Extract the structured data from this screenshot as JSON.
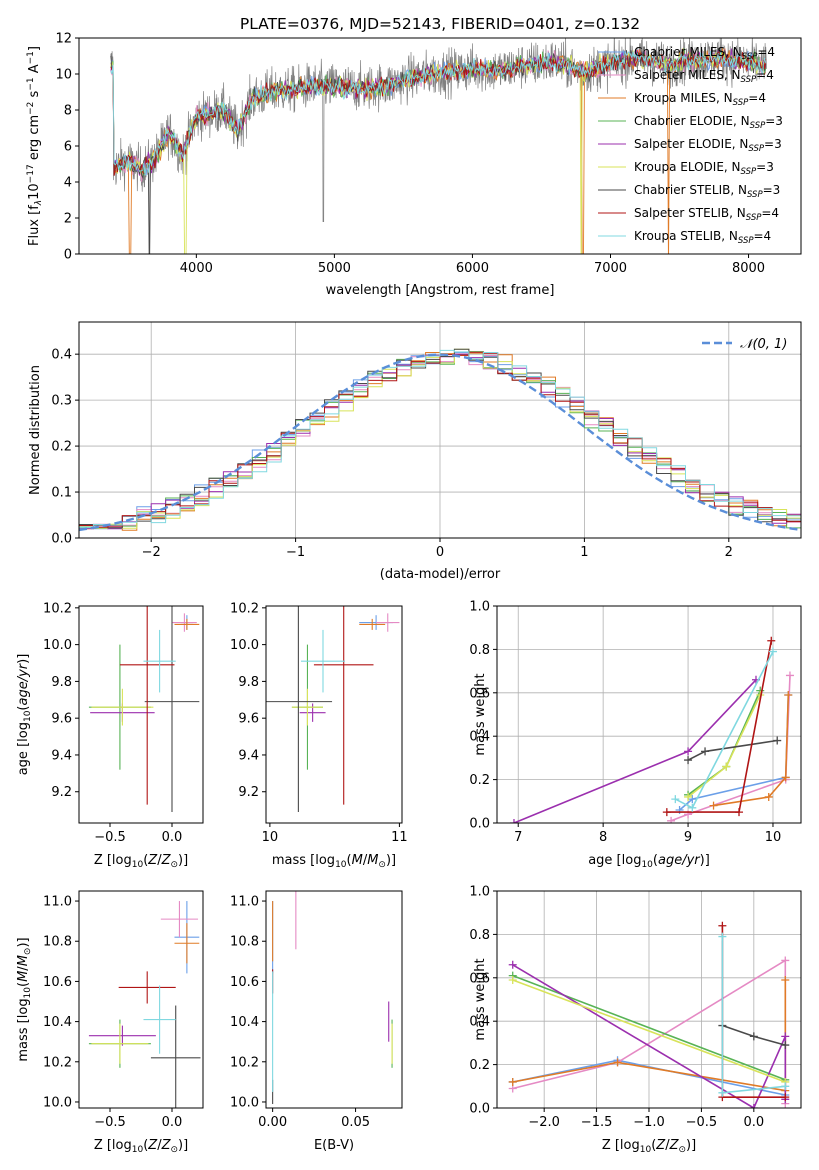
{
  "figure": {
    "title": "PLATE=0376, MJD=52143, FIBERID=0401, z=0.132"
  },
  "colors": {
    "chabrier_miles": "#6b9fe8",
    "salpeter_miles": "#e58ac4",
    "kroupa_miles": "#e07b27",
    "chabrier_elodie": "#58b356",
    "salpeter_elodie": "#9b2fae",
    "kroupa_elodie": "#d8e35a",
    "chabrier_stelib": "#4a4a4a",
    "salpeter_stelib": "#b01515",
    "kroupa_stelib": "#80d8e0",
    "data": "#7f7f7f",
    "gauss": "#5a8ed8"
  },
  "chart_data": [
    {
      "id": "spectrum",
      "type": "line",
      "xlabel": "wavelength [Angstrom, rest frame]",
      "ylabel": "Flux [f",
      "xlim": [
        3150,
        8380
      ],
      "ylim": [
        0,
        12
      ],
      "xticks": [
        4000,
        5000,
        6000,
        7000,
        8000
      ],
      "yticks": [
        0,
        2,
        4,
        6,
        8,
        10,
        12
      ],
      "legend": {
        "placement": "right",
        "entries": [
          {
            "name": "Chabrier MILES, N",
            "sub": "SSP",
            "suffix": "=4",
            "color": "chabrier_miles"
          },
          {
            "name": "Salpeter MILES, N",
            "sub": "SSP",
            "suffix": "=4",
            "color": "salpeter_miles"
          },
          {
            "name": "Kroupa MILES, N",
            "sub": "SSP",
            "suffix": "=4",
            "color": "kroupa_miles"
          },
          {
            "name": "Chabrier ELODIE, N",
            "sub": "SSP",
            "suffix": "=3",
            "color": "chabrier_elodie"
          },
          {
            "name": "Salpeter ELODIE, N",
            "sub": "SSP",
            "suffix": "=3",
            "color": "salpeter_elodie"
          },
          {
            "name": "Kroupa ELODIE, N",
            "sub": "SSP",
            "suffix": "=3",
            "color": "kroupa_elodie"
          },
          {
            "name": "Chabrier STELIB, N",
            "sub": "SSP",
            "suffix": "=3",
            "color": "chabrier_stelib"
          },
          {
            "name": "Salpeter STELIB, N",
            "sub": "SSP",
            "suffix": "=4",
            "color": "salpeter_stelib"
          },
          {
            "name": "Kroupa STELIB, N",
            "sub": "SSP",
            "suffix": "=4",
            "color": "kroupa_stelib"
          }
        ]
      },
      "continuum": [
        [
          3400,
          4.8
        ],
        [
          3500,
          5.2
        ],
        [
          3600,
          4.7
        ],
        [
          3700,
          5.3
        ],
        [
          3800,
          6.8
        ],
        [
          3900,
          5.5
        ],
        [
          4000,
          7.6
        ],
        [
          4100,
          7.8
        ],
        [
          4200,
          8.0
        ],
        [
          4300,
          6.8
        ],
        [
          4400,
          8.6
        ],
        [
          4500,
          8.9
        ],
        [
          4600,
          9.1
        ],
        [
          4700,
          9.1
        ],
        [
          4800,
          9.3
        ],
        [
          5000,
          9.3
        ],
        [
          5200,
          9.2
        ],
        [
          5400,
          9.4
        ],
        [
          5600,
          9.9
        ],
        [
          5800,
          10.1
        ],
        [
          6000,
          10.3
        ],
        [
          6200,
          10.2
        ],
        [
          6400,
          10.5
        ],
        [
          6600,
          10.7
        ],
        [
          6800,
          10.1
        ],
        [
          7000,
          10.6
        ],
        [
          7200,
          10.9
        ],
        [
          7400,
          10.5
        ],
        [
          7600,
          10.8
        ],
        [
          7800,
          10.9
        ],
        [
          8000,
          10.6
        ],
        [
          8120,
          10.5
        ]
      ],
      "model_drops": [
        {
          "series": "kroupa_miles",
          "x": 3520
        },
        {
          "series": "chabrier_stelib",
          "x": 3660
        },
        {
          "series": "kroupa_elodie",
          "x": 3920
        },
        {
          "series": "kroupa_elodie",
          "x": 6790
        },
        {
          "series": "kroupa_miles",
          "x": 6800
        },
        {
          "series": "kroupa_miles",
          "x": 7420
        }
      ]
    },
    {
      "id": "residuals",
      "type": "line",
      "xlabel": "(data-model)/error",
      "ylabel": "Normed distribution",
      "xlim": [
        -2.5,
        2.5
      ],
      "ylim": [
        0,
        0.47
      ],
      "xticks": [
        -2,
        -1,
        0,
        1,
        2
      ],
      "yticks": [
        0.0,
        0.1,
        0.2,
        0.3,
        0.4
      ],
      "grid": true,
      "legend": {
        "placement": "top-right",
        "entries": [
          {
            "name": "𝒩(0, 1)",
            "color": "gauss",
            "style": "dashed"
          }
        ]
      },
      "bin_width": 0.1,
      "series_colors": [
        "chabrier_miles",
        "salpeter_miles",
        "kroupa_miles",
        "chabrier_elodie",
        "salpeter_elodie",
        "kroupa_elodie",
        "chabrier_stelib",
        "salpeter_stelib",
        "kroupa_stelib"
      ]
    },
    {
      "id": "z_age",
      "type": "scatter",
      "xlabel": "Z [log",
      "ylabel": "age  [log",
      "xlim": [
        -0.75,
        0.25
      ],
      "ylim": [
        9.03,
        10.21
      ],
      "xticks": [
        -0.5,
        0.0
      ],
      "yticks": [
        9.2,
        9.4,
        9.6,
        9.8,
        10.0,
        10.2
      ],
      "points": [
        {
          "x": 0.12,
          "y": 10.12,
          "xerr": 0.05,
          "yerr": 0.04,
          "color": "chabrier_miles"
        },
        {
          "x": 0.1,
          "y": 10.12,
          "xerr": 0.1,
          "yerr": 0.05,
          "color": "salpeter_miles"
        },
        {
          "x": 0.12,
          "y": 10.11,
          "xerr": 0.1,
          "yerr": 0.03,
          "color": "kroupa_miles"
        },
        {
          "x": -0.42,
          "y": 9.66,
          "xerr": 0.25,
          "yerr": 0.34,
          "color": "chabrier_elodie"
        },
        {
          "x": -0.4,
          "y": 9.63,
          "xerr": 0.26,
          "yerr": 0.05,
          "color": "salpeter_elodie"
        },
        {
          "x": -0.4,
          "y": 9.66,
          "xerr": 0.25,
          "yerr": 0.1,
          "color": "kroupa_elodie"
        },
        {
          "x": 0.0,
          "y": 9.69,
          "xerr": 0.22,
          "yerr": 0.6,
          "color": "chabrier_stelib"
        },
        {
          "x": -0.2,
          "y": 9.89,
          "xerr": 0.22,
          "yerr": 0.76,
          "color": "salpeter_stelib"
        },
        {
          "x": -0.1,
          "y": 9.91,
          "xerr": 0.13,
          "yerr": 0.17,
          "color": "kroupa_stelib"
        }
      ]
    },
    {
      "id": "mass_age",
      "type": "scatter",
      "xlabel": "mass [log",
      "ylabel": "",
      "xlim": [
        9.97,
        11.02
      ],
      "ylim": [
        9.03,
        10.21
      ],
      "xticks": [
        10,
        11
      ],
      "yticks": [
        9.2,
        9.4,
        9.6,
        9.8,
        10.0,
        10.2
      ],
      "points": [
        {
          "x": 10.82,
          "y": 10.12,
          "xerr": 0.13,
          "yerr": 0.04,
          "color": "chabrier_miles"
        },
        {
          "x": 10.91,
          "y": 10.12,
          "xerr": 0.09,
          "yerr": 0.05,
          "color": "salpeter_miles"
        },
        {
          "x": 10.79,
          "y": 10.11,
          "xerr": 0.1,
          "yerr": 0.03,
          "color": "kroupa_miles"
        },
        {
          "x": 10.29,
          "y": 9.66,
          "xerr": 0.12,
          "yerr": 0.34,
          "color": "chabrier_elodie"
        },
        {
          "x": 10.33,
          "y": 9.63,
          "xerr": 0.1,
          "yerr": 0.05,
          "color": "salpeter_elodie"
        },
        {
          "x": 10.29,
          "y": 9.66,
          "xerr": 0.12,
          "yerr": 0.1,
          "color": "kroupa_elodie"
        },
        {
          "x": 10.22,
          "y": 9.69,
          "xerr": 0.26,
          "yerr": 0.6,
          "color": "chabrier_stelib"
        },
        {
          "x": 10.57,
          "y": 9.89,
          "xerr": 0.23,
          "yerr": 0.76,
          "color": "salpeter_stelib"
        },
        {
          "x": 10.41,
          "y": 9.91,
          "xerr": 0.17,
          "yerr": 0.17,
          "color": "kroupa_stelib"
        }
      ]
    },
    {
      "id": "age_weight",
      "type": "line",
      "xlabel": "age  [log",
      "ylabel": "mass weight",
      "xlim": [
        6.75,
        10.33
      ],
      "ylim": [
        0,
        1.0
      ],
      "xticks": [
        7,
        8,
        9,
        10
      ],
      "yticks": [
        0.0,
        0.2,
        0.4,
        0.6,
        0.8,
        1.0
      ],
      "grid": true,
      "series": [
        {
          "color": "chabrier_miles",
          "x": [
            8.9,
            9.05,
            10.15,
            10.18
          ],
          "y": [
            0.06,
            0.11,
            0.21,
            0.59
          ]
        },
        {
          "color": "salpeter_miles",
          "x": [
            8.8,
            9.0,
            10.15,
            10.2
          ],
          "y": [
            0.01,
            0.04,
            0.2,
            0.68
          ]
        },
        {
          "color": "kroupa_miles",
          "x": [
            9.3,
            9.95,
            10.15,
            10.18
          ],
          "y": [
            0.08,
            0.12,
            0.21,
            0.59
          ]
        },
        {
          "color": "chabrier_elodie",
          "x": [
            9.0,
            9.45,
            9.85
          ],
          "y": [
            0.13,
            0.26,
            0.61
          ]
        },
        {
          "color": "salpeter_elodie",
          "x": [
            6.95,
            9.0,
            9.8
          ],
          "y": [
            0.0,
            0.33,
            0.66
          ]
        },
        {
          "color": "kroupa_elodie",
          "x": [
            9.0,
            9.45,
            9.85
          ],
          "y": [
            0.12,
            0.26,
            0.59
          ]
        },
        {
          "color": "chabrier_stelib",
          "x": [
            9.0,
            9.2,
            10.05
          ],
          "y": [
            0.29,
            0.33,
            0.38
          ]
        },
        {
          "color": "salpeter_stelib",
          "x": [
            8.75,
            9.6,
            9.98
          ],
          "y": [
            0.05,
            0.05,
            0.84
          ]
        },
        {
          "color": "kroupa_stelib",
          "x": [
            8.85,
            9.05,
            10.0
          ],
          "y": [
            0.11,
            0.07,
            0.79
          ]
        }
      ]
    },
    {
      "id": "z_mass",
      "type": "scatter",
      "xlabel": "Z [log",
      "ylabel": "mass [log",
      "xlim": [
        -0.75,
        0.25
      ],
      "ylim": [
        9.97,
        11.05
      ],
      "xticks": [
        -0.5,
        0.0
      ],
      "yticks": [
        10.0,
        10.2,
        10.4,
        10.6,
        10.8,
        11.0
      ],
      "points": [
        {
          "x": 0.12,
          "y": 10.82,
          "xerr": 0.1,
          "yerr": 0.18,
          "color": "chabrier_miles"
        },
        {
          "x": 0.06,
          "y": 10.91,
          "xerr": 0.15,
          "yerr": 0.09,
          "color": "salpeter_miles"
        },
        {
          "x": 0.12,
          "y": 10.79,
          "xerr": 0.1,
          "yerr": 0.1,
          "color": "kroupa_miles"
        },
        {
          "x": -0.42,
          "y": 10.29,
          "xerr": 0.25,
          "yerr": 0.12,
          "color": "chabrier_elodie"
        },
        {
          "x": -0.4,
          "y": 10.33,
          "xerr": 0.27,
          "yerr": 0.05,
          "color": "salpeter_elodie"
        },
        {
          "x": -0.42,
          "y": 10.29,
          "xerr": 0.23,
          "yerr": 0.1,
          "color": "kroupa_elodie"
        },
        {
          "x": 0.03,
          "y": 10.22,
          "xerr": 0.2,
          "yerr": 0.26,
          "color": "chabrier_stelib"
        },
        {
          "x": -0.2,
          "y": 10.57,
          "xerr": 0.23,
          "yerr": 0.08,
          "color": "salpeter_stelib"
        },
        {
          "x": -0.1,
          "y": 10.41,
          "xerr": 0.13,
          "yerr": 0.17,
          "color": "kroupa_stelib"
        }
      ]
    },
    {
      "id": "ebv_mass",
      "type": "scatter",
      "xlabel": "E(B-V)",
      "ylabel": "",
      "xlim": [
        -0.004,
        0.078
      ],
      "ylim": [
        9.97,
        11.05
      ],
      "xticks": [
        0.0,
        0.05
      ],
      "yticks": [
        10.0,
        10.2,
        10.4,
        10.6,
        10.8,
        11.0
      ],
      "points": [
        {
          "x": 0.0,
          "y": 10.82,
          "xerr": 0.0,
          "yerr": 0.18,
          "color": "chabrier_miles"
        },
        {
          "x": 0.014,
          "y": 10.91,
          "xerr": 0.0,
          "yerr": 0.15,
          "color": "salpeter_miles"
        },
        {
          "x": 0.0,
          "y": 10.85,
          "xerr": 0.0,
          "yerr": 0.15,
          "color": "kroupa_miles"
        },
        {
          "x": 0.072,
          "y": 10.29,
          "xerr": 0.0,
          "yerr": 0.12,
          "color": "chabrier_elodie"
        },
        {
          "x": 0.07,
          "y": 10.4,
          "xerr": 0.0,
          "yerr": 0.1,
          "color": "salpeter_elodie"
        },
        {
          "x": 0.072,
          "y": 10.29,
          "xerr": 0.0,
          "yerr": 0.1,
          "color": "kroupa_elodie"
        },
        {
          "x": 0.0,
          "y": 10.05,
          "xerr": 0.0,
          "yerr": 0.06,
          "color": "chabrier_stelib"
        },
        {
          "x": 0.0,
          "y": 10.6,
          "xerr": 0.0,
          "yerr": 0.06,
          "color": "salpeter_stelib"
        },
        {
          "x": 0.0,
          "y": 10.35,
          "xerr": 0.0,
          "yerr": 0.3,
          "color": "kroupa_stelib"
        }
      ]
    },
    {
      "id": "z_weight",
      "type": "line",
      "xlabel": "Z [log",
      "ylabel": "mass weight",
      "xlim": [
        -2.45,
        0.45
      ],
      "ylim": [
        0,
        1.0
      ],
      "xticks": [
        -2.0,
        -1.5,
        -1.0,
        -0.5,
        0.0
      ],
      "yticks": [
        0.0,
        0.2,
        0.4,
        0.6,
        0.8,
        1.0
      ],
      "grid": true,
      "series": [
        {
          "color": "chabrier_miles",
          "x": [
            -2.3,
            -1.3,
            0.3
          ],
          "y": [
            0.12,
            0.22,
            0.06
          ]
        },
        {
          "color": "salpeter_miles",
          "x": [
            -2.3,
            -1.3,
            0.3,
            0.3
          ],
          "y": [
            0.09,
            0.21,
            0.68,
            0.02
          ]
        },
        {
          "color": "kroupa_miles",
          "x": [
            -2.3,
            -1.3,
            0.3,
            0.3
          ],
          "y": [
            0.12,
            0.21,
            0.08,
            0.59
          ]
        },
        {
          "color": "chabrier_elodie",
          "x": [
            -2.3,
            0.3
          ],
          "y": [
            0.61,
            0.13
          ]
        },
        {
          "color": "salpeter_elodie",
          "x": [
            -2.3,
            0.0,
            0.3,
            0.3
          ],
          "y": [
            0.66,
            0.0,
            0.33,
            0.04
          ]
        },
        {
          "color": "kroupa_elodie",
          "x": [
            -2.3,
            0.3
          ],
          "y": [
            0.59,
            0.12
          ]
        },
        {
          "color": "chabrier_stelib",
          "x": [
            -0.3,
            0.0,
            0.3
          ],
          "y": [
            0.38,
            0.33,
            0.29
          ]
        },
        {
          "color": "salpeter_stelib",
          "x": [
            -0.3,
            -0.3,
            0.3
          ],
          "y": [
            0.84,
            0.05,
            0.05
          ]
        },
        {
          "color": "kroupa_stelib",
          "x": [
            -0.3,
            -0.3,
            0.3
          ],
          "y": [
            0.79,
            0.07,
            0.1
          ]
        }
      ]
    }
  ]
}
